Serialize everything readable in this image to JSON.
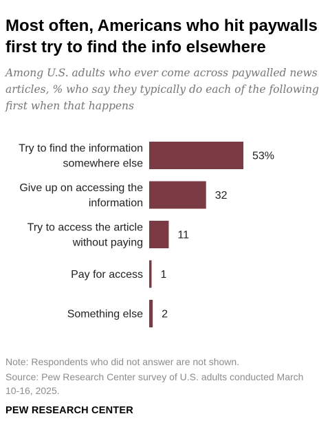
{
  "title": "Most often, Americans who hit paywalls first try to find the info elsewhere",
  "subtitle": "Among U.S. adults who ever come across paywalled news articles, % who say they typically do each of the following first when that happens",
  "chart_data": {
    "type": "bar",
    "orientation": "horizontal",
    "categories": [
      [
        "Try to find the information",
        "somewhere else"
      ],
      [
        "Give up on accessing the",
        "information"
      ],
      [
        "Try to access the article",
        "without paying"
      ],
      [
        "Pay for access"
      ],
      [
        "Something else"
      ]
    ],
    "values": [
      53,
      32,
      11,
      1,
      2
    ],
    "value_labels": [
      "53%",
      "32",
      "11",
      "1",
      "2"
    ],
    "bar_color": "#7b3b45",
    "xlim": [
      0,
      53
    ],
    "grid": false
  },
  "note": "Note: Respondents who did not answer are not shown.",
  "source": "Source: Pew Research Center survey of U.S. adults conducted March 10-16, 2025.",
  "brand": "PEW RESEARCH CENTER"
}
